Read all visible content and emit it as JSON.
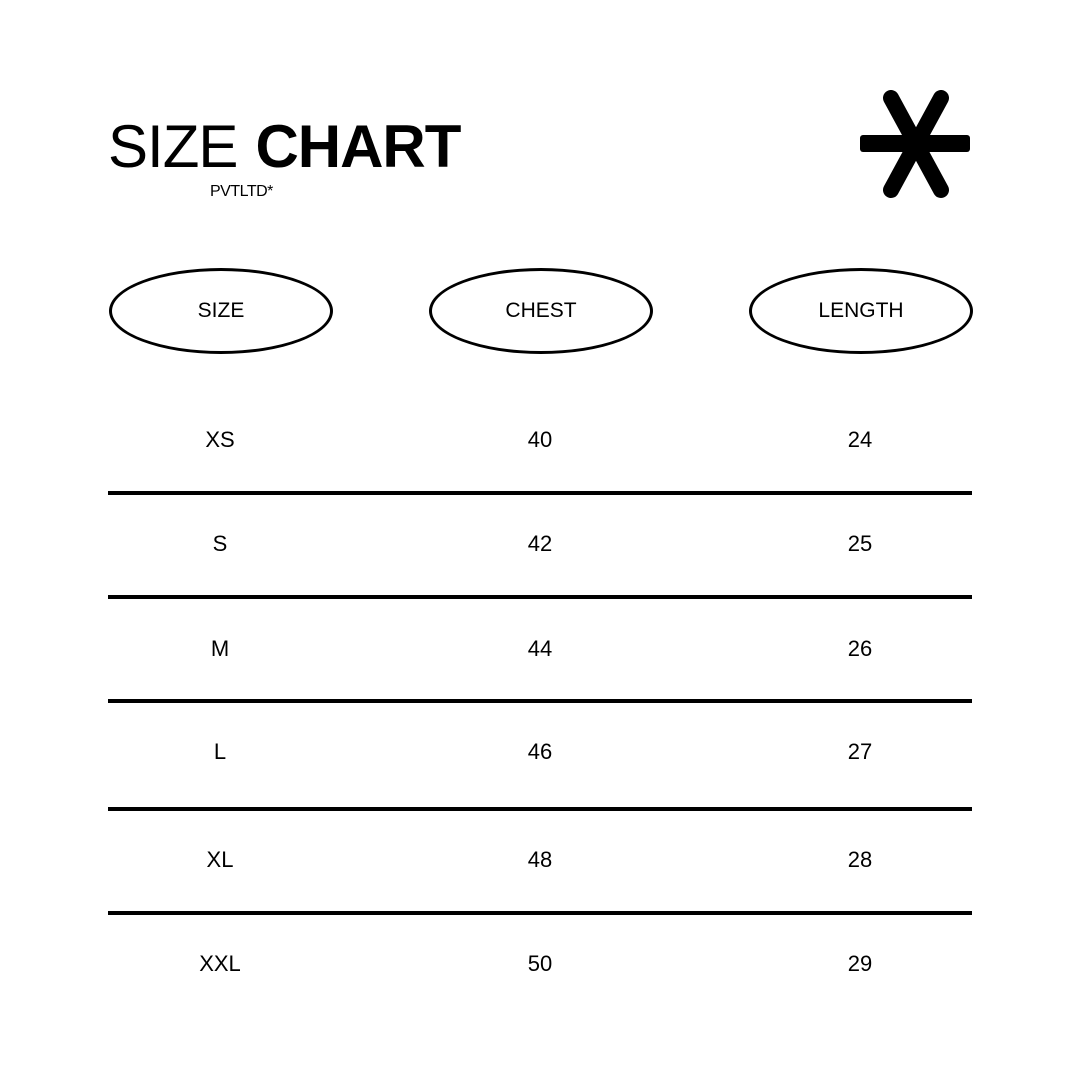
{
  "header": {
    "title_light": "SIZE",
    "title_bold": "CHART",
    "brand": "PVTLTD*",
    "logo_icon": "asterisk-icon"
  },
  "table": {
    "columns": [
      "SIZE",
      "CHEST",
      "LENGTH"
    ],
    "rows": [
      [
        "XS",
        "40",
        "24"
      ],
      [
        "S",
        "42",
        "25"
      ],
      [
        "M",
        "44",
        "26"
      ],
      [
        "L",
        "46",
        "27"
      ],
      [
        "XL",
        "48",
        "28"
      ],
      [
        "XXL",
        "50",
        "29"
      ]
    ]
  }
}
